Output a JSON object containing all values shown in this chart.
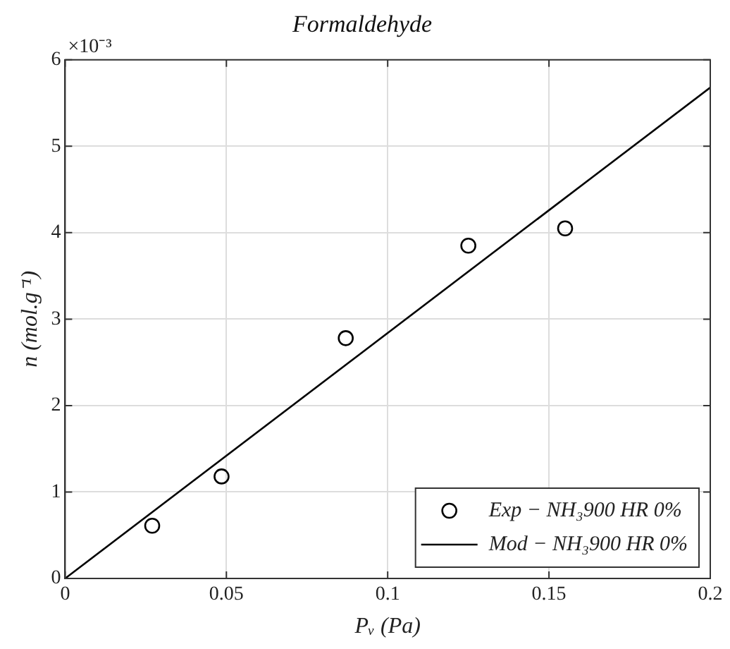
{
  "chart_data": {
    "type": "scatter",
    "title": "Formaldehyde",
    "xlabel": "Pᵥ (Pa)",
    "ylabel": "n (mol.g⁻¹)",
    "annotations": [
      "×10⁻³"
    ],
    "xlim": [
      0,
      0.2
    ],
    "xticks": [
      0,
      0.05,
      0.1,
      0.15,
      0.2
    ],
    "ylim": [
      0,
      6
    ],
    "yticks": [
      0,
      1,
      2,
      3,
      4,
      5,
      6
    ],
    "grid": true,
    "legend": "bottom right",
    "series": [
      {
        "name": "Exp − NH₃900 HR 0%",
        "type": "scatter",
        "marker": "circle",
        "color": "#000000",
        "x": [
          0.027,
          0.0485,
          0.087,
          0.125,
          0.155
        ],
        "values": [
          0.61,
          1.18,
          2.78,
          3.85,
          4.05
        ]
      },
      {
        "name": "Mod − NH₃900 HR 0%",
        "type": "line",
        "marker": "none",
        "line_style": "solid",
        "color": "#000000",
        "x": [
          0,
          0.2
        ],
        "values": [
          0,
          5.68
        ]
      }
    ]
  }
}
